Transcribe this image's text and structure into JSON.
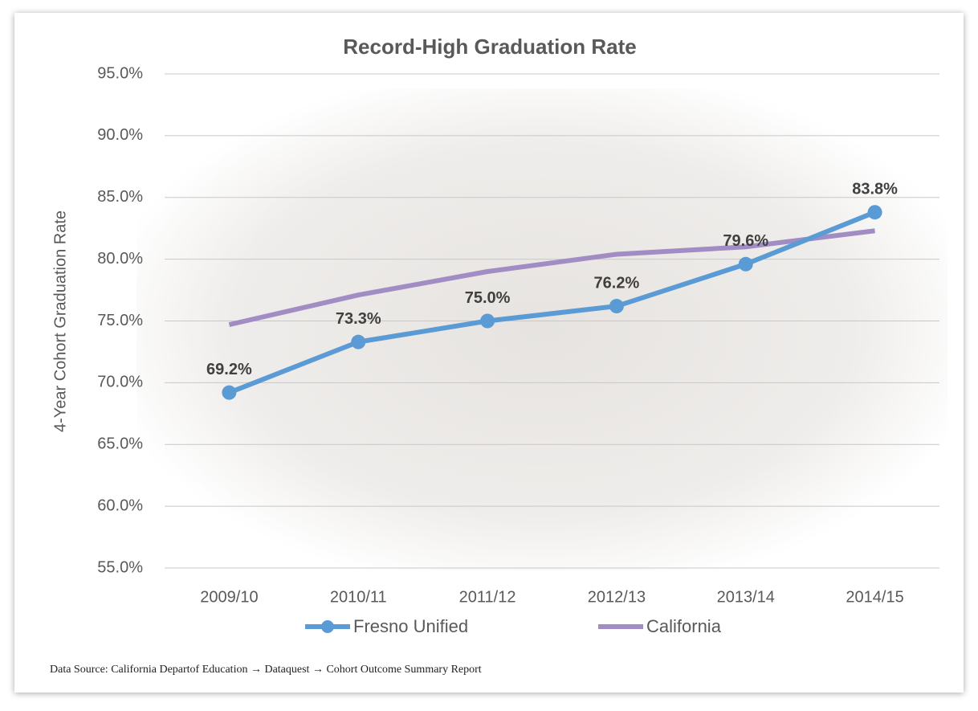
{
  "chart_data": {
    "type": "line",
    "title": "Record-High Graduation Rate",
    "y_label": "4-Year Cohort Graduation Rate",
    "categories": [
      "2009/10",
      "2010/11",
      "2011/12",
      "2012/13",
      "2013/14",
      "2014/15"
    ],
    "series": [
      {
        "name": "Fresno Unified",
        "color": "#5b9bd5",
        "markers": true,
        "values": [
          69.2,
          73.3,
          75.0,
          76.2,
          79.6,
          83.8
        ],
        "value_labels": [
          "69.2%",
          "73.3%",
          "75.0%",
          "76.2%",
          "79.6%",
          "83.8%"
        ]
      },
      {
        "name": "California",
        "color": "#a28cc4",
        "markers": false,
        "values": [
          74.7,
          77.1,
          79.0,
          80.4,
          81.0,
          82.3
        ]
      }
    ],
    "ylim": [
      55,
      95
    ],
    "yticks": [
      {
        "value": 55,
        "label": "55.0%"
      },
      {
        "value": 60,
        "label": "60.0%"
      },
      {
        "value": 65,
        "label": "65.0%"
      },
      {
        "value": 70,
        "label": "70.0%"
      },
      {
        "value": 75,
        "label": "75.0%"
      },
      {
        "value": 80,
        "label": "80.0%"
      },
      {
        "value": 85,
        "label": "85.0%"
      },
      {
        "value": 90,
        "label": "90.0%"
      },
      {
        "value": 95,
        "label": "95.0%"
      }
    ],
    "grid": true,
    "legend": "bottom",
    "source": "Data Source:  California Departof Education → Dataquest → Cohort Outcome Summary Report"
  }
}
